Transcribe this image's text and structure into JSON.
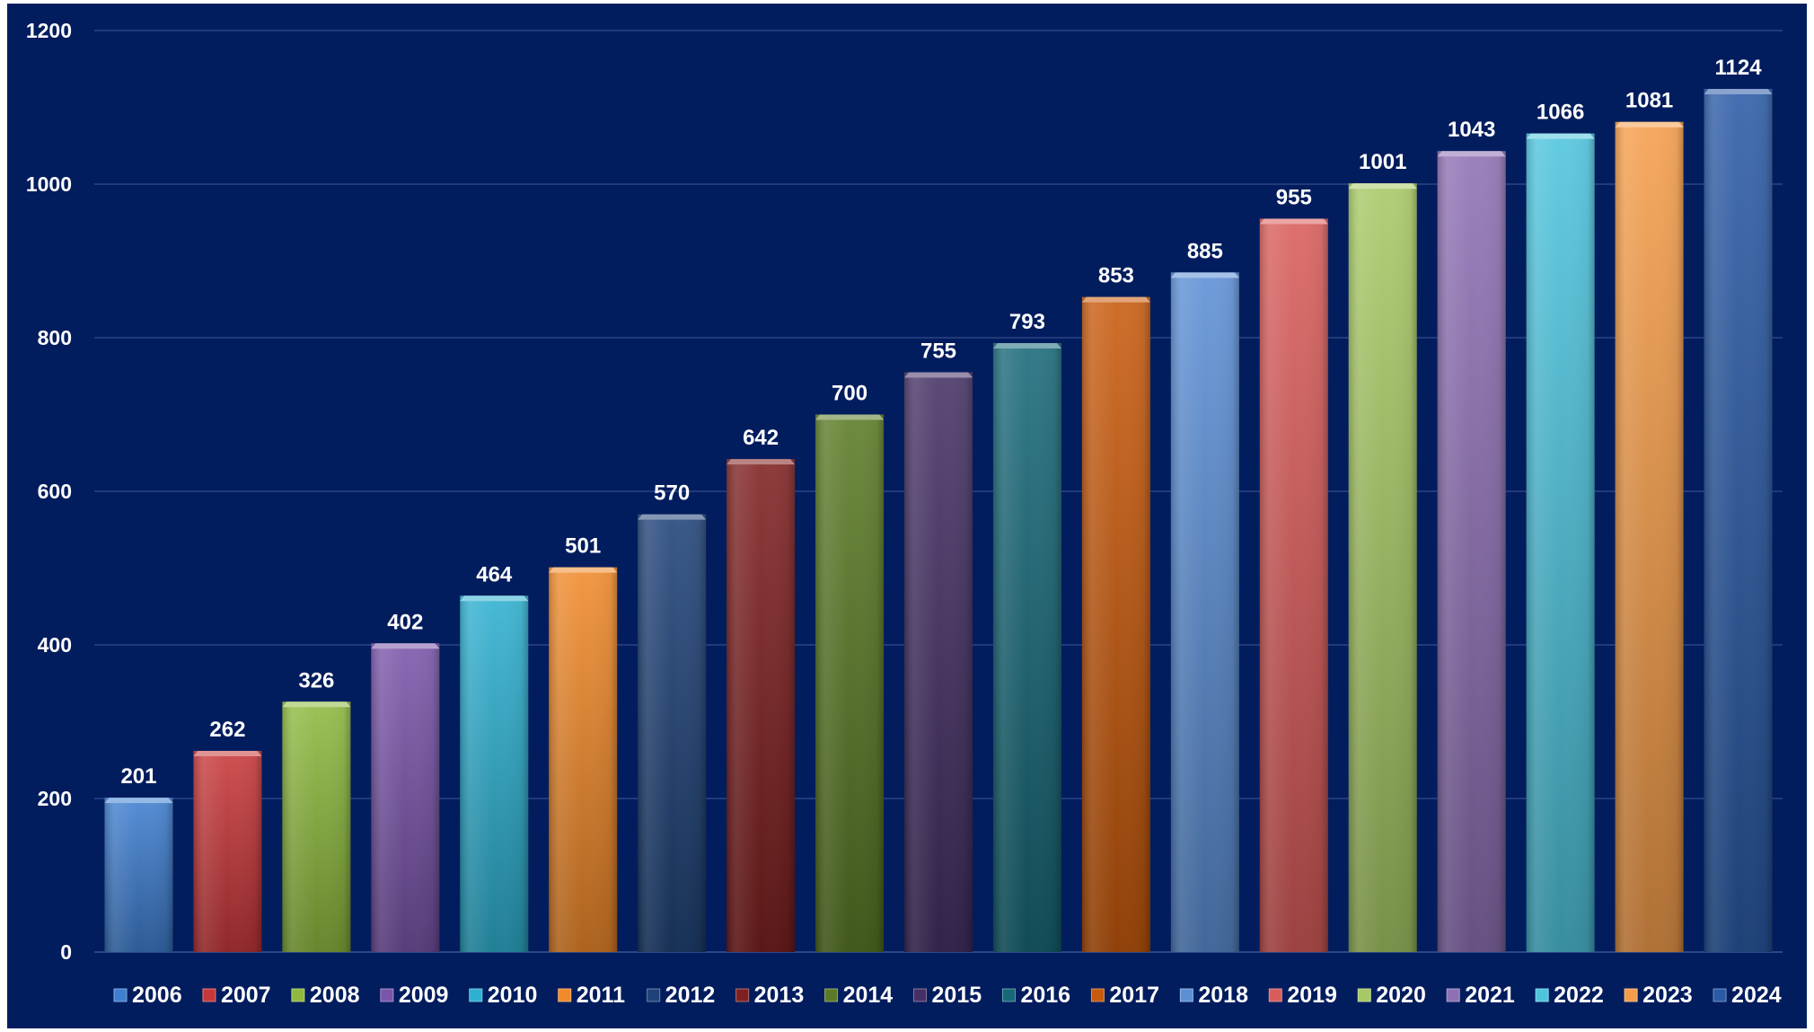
{
  "chart_data": {
    "type": "bar",
    "title": "",
    "xlabel": "",
    "ylabel": "",
    "categories": [
      "2006",
      "2007",
      "2008",
      "2009",
      "2010",
      "2011",
      "2012",
      "2013",
      "2014",
      "2015",
      "2016",
      "2017",
      "2018",
      "2019",
      "2020",
      "2021",
      "2022",
      "2023",
      "2024"
    ],
    "values": [
      201,
      262,
      326,
      402,
      464,
      501,
      570,
      642,
      700,
      755,
      793,
      853,
      885,
      955,
      1001,
      1043,
      1066,
      1081,
      1124
    ],
    "ylim": [
      0,
      1200
    ],
    "yticks": [
      "0",
      "200",
      "400",
      "600",
      "800",
      "1000",
      "1200"
    ],
    "grid": true,
    "legend_position": "bottom",
    "background_color": "#021d5e",
    "colors": [
      "#3f7fd0",
      "#c8383a",
      "#8fba3f",
      "#7a55aa",
      "#2eb0d0",
      "#f08a2a",
      "#1f4278",
      "#7f2020",
      "#5a7a25",
      "#453065",
      "#176878",
      "#c85a0d",
      "#5b8fd5",
      "#d85c5a",
      "#a7c965",
      "#8e70b4",
      "#4ec4dd",
      "#f59d4a",
      "#2a5aa5"
    ]
  }
}
